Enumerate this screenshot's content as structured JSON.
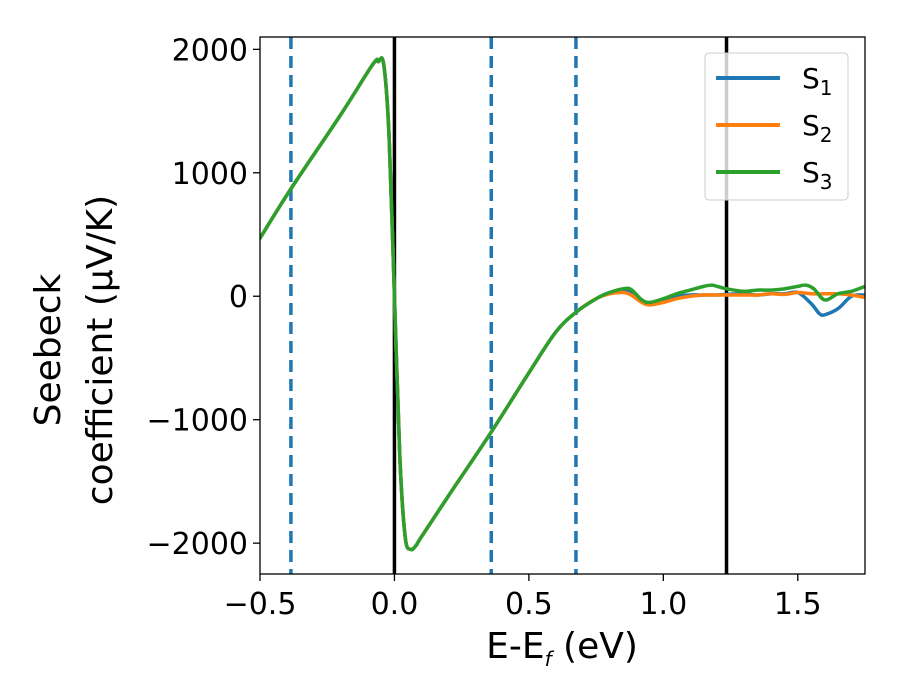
{
  "chart_data": {
    "type": "line",
    "xlabel": {
      "main": "E-E",
      "sub": "f",
      "suffix": " (eV)"
    },
    "ylabel": {
      "line1": "Seebeck",
      "line2": "coefficient  (μV/K)"
    },
    "xlim": [
      -0.5,
      1.75
    ],
    "ylim": [
      -2250,
      2100
    ],
    "xticks": [
      -0.5,
      0.0,
      0.5,
      1.0,
      1.5
    ],
    "xtick_labels": [
      "−0.5",
      "0.0",
      "0.5",
      "1.0",
      "1.5"
    ],
    "yticks": [
      -2000,
      -1000,
      0,
      1000,
      2000
    ],
    "ytick_labels": [
      "−2000",
      "−1000",
      "0",
      "1000",
      "2000"
    ],
    "legend_position": "top-right",
    "vlines_solid": [
      0.0,
      1.235
    ],
    "vlines_dashed": [
      -0.385,
      0.36,
      0.675
    ],
    "colors": {
      "S1": "#1f77b4",
      "S2": "#ff7f0e",
      "S3": "#2ca02c",
      "solid_line": "#000000",
      "dashed_line": "#1f77b4"
    },
    "series": [
      {
        "key": "S1",
        "name": "S",
        "sub": "1",
        "x": [
          -0.5,
          -0.385,
          -0.2,
          -0.08,
          -0.06,
          -0.04,
          -0.02,
          0.0,
          0.02,
          0.04,
          0.06,
          0.08,
          0.1,
          0.2,
          0.36,
          0.5,
          0.6,
          0.675,
          0.75,
          0.8,
          0.85,
          0.88,
          0.92,
          0.95,
          1.0,
          1.05,
          1.1,
          1.15,
          1.2,
          1.235,
          1.3,
          1.35,
          1.4,
          1.45,
          1.5,
          1.55,
          1.58,
          1.6,
          1.65,
          1.7,
          1.75
        ],
        "y": [
          470,
          870,
          1470,
          1880,
          1900,
          1880,
          1300,
          0,
          -1300,
          -1950,
          -2050,
          -2020,
          -1950,
          -1620,
          -1100,
          -620,
          -290,
          -130,
          -20,
          30,
          50,
          40,
          -30,
          -60,
          -40,
          0,
          10,
          10,
          10,
          15,
          20,
          10,
          20,
          20,
          30,
          -60,
          -140,
          -150,
          -100,
          0,
          10
        ]
      },
      {
        "key": "S2",
        "name": "S",
        "sub": "2",
        "x": [
          -0.5,
          -0.385,
          -0.2,
          -0.08,
          -0.06,
          -0.04,
          -0.02,
          0.0,
          0.02,
          0.04,
          0.06,
          0.08,
          0.1,
          0.2,
          0.36,
          0.5,
          0.6,
          0.675,
          0.75,
          0.8,
          0.85,
          0.88,
          0.92,
          0.95,
          1.0,
          1.05,
          1.1,
          1.15,
          1.2,
          1.235,
          1.3,
          1.35,
          1.4,
          1.45,
          1.5,
          1.55,
          1.6,
          1.65,
          1.7,
          1.75
        ],
        "y": [
          470,
          870,
          1470,
          1880,
          1900,
          1880,
          1300,
          0,
          -1300,
          -1950,
          -2050,
          -2020,
          -1950,
          -1620,
          -1100,
          -620,
          -290,
          -130,
          -20,
          20,
          30,
          10,
          -50,
          -70,
          -50,
          -20,
          0,
          10,
          10,
          10,
          10,
          10,
          20,
          15,
          30,
          20,
          20,
          20,
          10,
          -10
        ]
      },
      {
        "key": "S3",
        "name": "S",
        "sub": "3",
        "x": [
          -0.5,
          -0.385,
          -0.2,
          -0.08,
          -0.06,
          -0.04,
          -0.02,
          0.0,
          0.02,
          0.04,
          0.06,
          0.08,
          0.1,
          0.2,
          0.36,
          0.5,
          0.6,
          0.675,
          0.75,
          0.8,
          0.85,
          0.88,
          0.92,
          0.95,
          1.0,
          1.05,
          1.1,
          1.15,
          1.18,
          1.2,
          1.235,
          1.3,
          1.35,
          1.4,
          1.45,
          1.5,
          1.53,
          1.56,
          1.6,
          1.65,
          1.7,
          1.75
        ],
        "y": [
          470,
          870,
          1470,
          1880,
          1900,
          1880,
          1300,
          0,
          -1300,
          -1950,
          -2050,
          -2020,
          -1950,
          -1620,
          -1100,
          -620,
          -290,
          -130,
          -20,
          30,
          60,
          55,
          -30,
          -50,
          -20,
          20,
          50,
          80,
          90,
          80,
          60,
          40,
          50,
          50,
          60,
          80,
          90,
          60,
          -30,
          20,
          40,
          80
        ]
      }
    ]
  }
}
